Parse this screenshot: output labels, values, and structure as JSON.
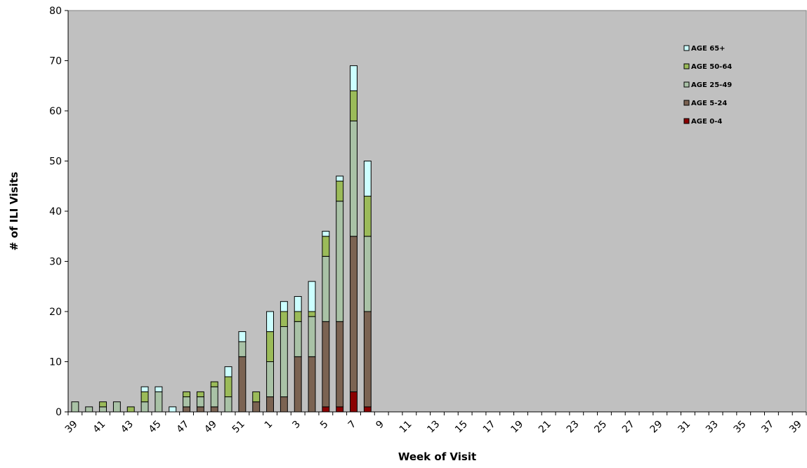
{
  "chart_data": {
    "type": "bar",
    "stacked": true,
    "title": "",
    "xlabel": "Week of Visit",
    "ylabel": "# of ILI Visits",
    "ylim": [
      0,
      80
    ],
    "ytick_step": 10,
    "grid": false,
    "legend_position": "top-right",
    "plot_background": "#c0c0c0",
    "categories": [
      "39",
      "40",
      "41",
      "42",
      "43",
      "44",
      "45",
      "46",
      "47",
      "48",
      "49",
      "50",
      "51",
      "52",
      "1",
      "2",
      "3",
      "4",
      "5",
      "6",
      "7",
      "8",
      "9",
      "10",
      "11",
      "12",
      "13",
      "14",
      "15",
      "16",
      "17",
      "18",
      "19",
      "20",
      "21",
      "22",
      "23",
      "24",
      "25",
      "26",
      "27",
      "28",
      "29",
      "30",
      "31",
      "32",
      "33",
      "34",
      "35",
      "36",
      "37",
      "38",
      "39"
    ],
    "tick_labels": [
      "39",
      "",
      "41",
      "",
      "43",
      "",
      "45",
      "",
      "47",
      "",
      "49",
      "",
      "51",
      "",
      "1",
      "",
      "3",
      "",
      "5",
      "",
      "7",
      "",
      "9",
      "",
      "11",
      "",
      "13",
      "",
      "15",
      "",
      "17",
      "",
      "19",
      "",
      "21",
      "",
      "23",
      "",
      "25",
      "",
      "27",
      "",
      "29",
      "",
      "31",
      "",
      "33",
      "",
      "35",
      "",
      "37",
      "",
      "39"
    ],
    "series": [
      {
        "name": "AGE 0-4",
        "color": "#8b0000",
        "values": [
          0,
          0,
          0,
          0,
          0,
          0,
          0,
          0,
          0,
          0,
          0,
          0,
          0,
          0,
          0,
          0,
          0,
          0,
          1,
          1,
          4,
          1,
          0,
          0,
          0,
          0,
          0,
          0,
          0,
          0,
          0,
          0,
          0,
          0,
          0,
          0,
          0,
          0,
          0,
          0,
          0,
          0,
          0,
          0,
          0,
          0,
          0,
          0,
          0,
          0,
          0,
          0,
          0
        ]
      },
      {
        "name": "AGE 5-24",
        "color": "#7b6352",
        "values": [
          0,
          0,
          0,
          0,
          0,
          0,
          0,
          0,
          1,
          1,
          1,
          0,
          11,
          2,
          3,
          3,
          11,
          11,
          17,
          17,
          31,
          19,
          0,
          0,
          0,
          0,
          0,
          0,
          0,
          0,
          0,
          0,
          0,
          0,
          0,
          0,
          0,
          0,
          0,
          0,
          0,
          0,
          0,
          0,
          0,
          0,
          0,
          0,
          0,
          0,
          0,
          0,
          0
        ]
      },
      {
        "name": "AGE 25-49",
        "color": "#a9c2a6",
        "values": [
          2,
          1,
          1,
          2,
          0,
          2,
          4,
          0,
          2,
          2,
          4,
          3,
          3,
          0,
          7,
          14,
          7,
          8,
          13,
          24,
          23,
          15,
          0,
          0,
          0,
          0,
          0,
          0,
          0,
          0,
          0,
          0,
          0,
          0,
          0,
          0,
          0,
          0,
          0,
          0,
          0,
          0,
          0,
          0,
          0,
          0,
          0,
          0,
          0,
          0,
          0,
          0,
          0
        ]
      },
      {
        "name": "AGE 50-64",
        "color": "#9bbb59",
        "values": [
          0,
          0,
          1,
          0,
          1,
          2,
          0,
          0,
          1,
          1,
          1,
          4,
          0,
          2,
          6,
          3,
          2,
          1,
          4,
          4,
          6,
          8,
          0,
          0,
          0,
          0,
          0,
          0,
          0,
          0,
          0,
          0,
          0,
          0,
          0,
          0,
          0,
          0,
          0,
          0,
          0,
          0,
          0,
          0,
          0,
          0,
          0,
          0,
          0,
          0,
          0,
          0,
          0
        ]
      },
      {
        "name": "AGE 65+",
        "color": "#ccffff",
        "values": [
          0,
          0,
          0,
          0,
          0,
          1,
          1,
          1,
          0,
          0,
          0,
          2,
          2,
          0,
          4,
          2,
          3,
          6,
          1,
          1,
          5,
          7,
          0,
          0,
          0,
          0,
          0,
          0,
          0,
          0,
          0,
          0,
          0,
          0,
          0,
          0,
          0,
          0,
          0,
          0,
          0,
          0,
          0,
          0,
          0,
          0,
          0,
          0,
          0,
          0,
          0,
          0,
          0
        ]
      }
    ],
    "legend_order": [
      "AGE 65+",
      "AGE 50-64",
      "AGE 25-49",
      "AGE 5-24",
      "AGE 0-4"
    ]
  }
}
